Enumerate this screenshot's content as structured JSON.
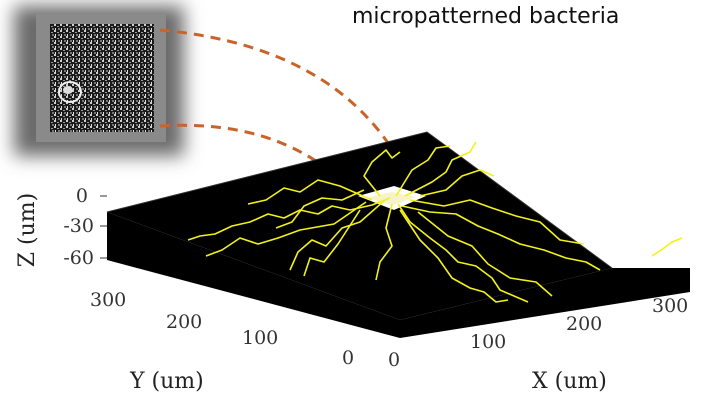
{
  "title": "micropatterned bacteria",
  "axes": {
    "z": {
      "label": "Z (um)",
      "ticks": [
        "0",
        "-30",
        "-60"
      ]
    },
    "y": {
      "label": "Y (um)",
      "ticks": [
        "300",
        "200",
        "100",
        "0"
      ]
    },
    "x": {
      "label": "X (um)",
      "ticks": [
        "0",
        "100",
        "200",
        "300"
      ]
    }
  },
  "colors": {
    "background_box": "#000000",
    "trajectories": "#f2f21a",
    "callout_lines": "#c8642a",
    "pattern": "#ffffff"
  },
  "inset": {
    "description_icon": "micrograph-inset"
  }
}
